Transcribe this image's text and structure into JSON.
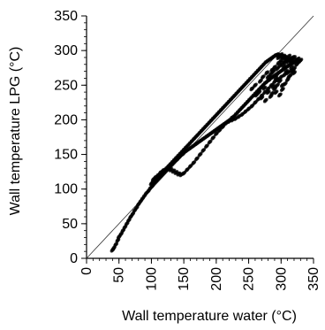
{
  "chart_data": {
    "type": "scatter",
    "xlabel": "Wall temperature water (°C)",
    "ylabel": "Wall temperature LPG (°C)",
    "xlim": [
      0,
      350
    ],
    "ylim": [
      0,
      350
    ],
    "x_ticks": [
      0,
      50,
      100,
      150,
      200,
      250,
      300,
      350
    ],
    "y_ticks": [
      0,
      50,
      100,
      150,
      200,
      250,
      300,
      350
    ],
    "grid": false,
    "reference_line": {
      "from": [
        0,
        0
      ],
      "to": [
        350,
        350
      ]
    },
    "marker_color": "#000000",
    "series": [
      {
        "name": "",
        "points": [
          [
            40,
            12
          ],
          [
            42,
            15
          ],
          [
            45,
            20
          ],
          [
            48,
            26
          ],
          [
            50,
            31
          ],
          [
            53,
            35
          ],
          [
            56,
            40
          ],
          [
            59,
            45
          ],
          [
            62,
            50
          ],
          [
            65,
            55
          ],
          [
            68,
            60
          ],
          [
            71,
            64
          ],
          [
            74,
            69
          ],
          [
            77,
            73
          ],
          [
            80,
            78
          ],
          [
            83,
            82
          ],
          [
            86,
            86
          ],
          [
            89,
            90
          ],
          [
            92,
            94
          ],
          [
            95,
            97
          ],
          [
            98,
            101
          ],
          [
            101,
            104
          ],
          [
            104,
            108
          ],
          [
            107,
            111
          ],
          [
            110,
            114
          ],
          [
            113,
            117
          ],
          [
            116,
            120
          ],
          [
            119,
            123
          ],
          [
            122,
            126
          ],
          [
            125,
            129
          ],
          [
            128,
            132
          ],
          [
            131,
            135
          ],
          [
            134,
            138
          ],
          [
            137,
            141
          ],
          [
            140,
            143
          ],
          [
            143,
            146
          ],
          [
            146,
            149
          ],
          [
            149,
            151
          ],
          [
            152,
            154
          ],
          [
            155,
            156
          ],
          [
            158,
            158
          ],
          [
            161,
            160
          ],
          [
            164,
            162
          ],
          [
            167,
            164
          ],
          [
            170,
            166
          ],
          [
            173,
            168
          ],
          [
            176,
            170
          ],
          [
            179,
            172
          ],
          [
            182,
            174
          ],
          [
            185,
            176
          ],
          [
            188,
            178
          ],
          [
            191,
            180
          ],
          [
            194,
            182
          ],
          [
            197,
            184
          ],
          [
            200,
            186
          ],
          [
            203,
            188
          ],
          [
            206,
            190
          ],
          [
            209,
            192
          ],
          [
            212,
            194
          ],
          [
            215,
            196
          ],
          [
            218,
            198
          ],
          [
            221,
            200
          ],
          [
            224,
            203
          ],
          [
            227,
            205
          ],
          [
            230,
            208
          ],
          [
            233,
            211
          ],
          [
            236,
            214
          ],
          [
            239,
            217
          ],
          [
            242,
            220
          ],
          [
            245,
            223
          ],
          [
            248,
            226
          ],
          [
            251,
            229
          ],
          [
            254,
            232
          ],
          [
            257,
            235
          ],
          [
            260,
            238
          ],
          [
            263,
            241
          ],
          [
            266,
            244
          ],
          [
            269,
            247
          ],
          [
            272,
            250
          ],
          [
            275,
            253
          ],
          [
            278,
            255
          ],
          [
            281,
            258
          ],
          [
            284,
            260
          ],
          [
            287,
            262
          ],
          [
            290,
            264
          ],
          [
            293,
            266
          ],
          [
            296,
            268
          ],
          [
            299,
            270
          ],
          [
            302,
            272
          ],
          [
            305,
            274
          ],
          [
            308,
            276
          ],
          [
            311,
            278
          ],
          [
            314,
            280
          ],
          [
            317,
            282
          ],
          [
            320,
            283
          ],
          [
            323,
            284
          ],
          [
            102,
            110
          ],
          [
            105,
            112
          ],
          [
            108,
            115
          ],
          [
            111,
            118
          ],
          [
            114,
            121
          ],
          [
            117,
            124
          ],
          [
            120,
            127
          ],
          [
            123,
            130
          ],
          [
            126,
            133
          ],
          [
            129,
            136
          ],
          [
            132,
            139
          ],
          [
            135,
            142
          ],
          [
            138,
            145
          ],
          [
            141,
            148
          ],
          [
            144,
            151
          ],
          [
            147,
            154
          ],
          [
            150,
            157
          ],
          [
            153,
            160
          ],
          [
            156,
            163
          ],
          [
            159,
            166
          ],
          [
            162,
            169
          ],
          [
            165,
            172
          ],
          [
            168,
            175
          ],
          [
            171,
            178
          ],
          [
            174,
            181
          ],
          [
            177,
            184
          ],
          [
            180,
            187
          ],
          [
            183,
            190
          ],
          [
            186,
            193
          ],
          [
            189,
            196
          ],
          [
            192,
            199
          ],
          [
            195,
            202
          ],
          [
            198,
            205
          ],
          [
            201,
            208
          ],
          [
            204,
            211
          ],
          [
            207,
            214
          ],
          [
            210,
            217
          ],
          [
            213,
            220
          ],
          [
            216,
            223
          ],
          [
            219,
            226
          ],
          [
            222,
            229
          ],
          [
            225,
            232
          ],
          [
            228,
            235
          ],
          [
            231,
            238
          ],
          [
            234,
            241
          ],
          [
            237,
            244
          ],
          [
            240,
            247
          ],
          [
            243,
            250
          ],
          [
            246,
            253
          ],
          [
            249,
            256
          ],
          [
            252,
            259
          ],
          [
            255,
            262
          ],
          [
            258,
            265
          ],
          [
            261,
            268
          ],
          [
            264,
            271
          ],
          [
            267,
            274
          ],
          [
            270,
            277
          ],
          [
            273,
            280
          ],
          [
            276,
            283
          ],
          [
            279,
            285
          ],
          [
            282,
            287
          ],
          [
            285,
            289
          ],
          [
            288,
            291
          ],
          [
            291,
            293
          ],
          [
            294,
            294
          ],
          [
            297,
            293
          ],
          [
            300,
            292
          ],
          [
            303,
            291
          ],
          [
            306,
            290
          ],
          [
            309,
            288
          ],
          [
            312,
            287
          ],
          [
            315,
            286
          ],
          [
            100,
            108
          ],
          [
            103,
            114
          ],
          [
            106,
            117
          ],
          [
            110,
            120
          ],
          [
            114,
            124
          ],
          [
            118,
            127
          ],
          [
            122,
            128
          ],
          [
            126,
            131
          ],
          [
            130,
            128
          ],
          [
            134,
            126
          ],
          [
            138,
            124
          ],
          [
            142,
            122
          ],
          [
            146,
            121
          ],
          [
            150,
            123
          ],
          [
            155,
            128
          ],
          [
            160,
            133
          ],
          [
            165,
            138
          ],
          [
            170,
            144
          ],
          [
            175,
            150
          ],
          [
            180,
            156
          ],
          [
            185,
            162
          ],
          [
            190,
            168
          ],
          [
            195,
            174
          ],
          [
            200,
            180
          ],
          [
            205,
            185
          ],
          [
            210,
            190
          ],
          [
            215,
            195
          ],
          [
            220,
            198
          ],
          [
            225,
            200
          ],
          [
            230,
            202
          ],
          [
            235,
            205
          ],
          [
            240,
            208
          ],
          [
            245,
            212
          ],
          [
            250,
            216
          ],
          [
            255,
            220
          ],
          [
            260,
            225
          ],
          [
            265,
            230
          ],
          [
            270,
            235
          ],
          [
            275,
            240
          ],
          [
            280,
            245
          ],
          [
            285,
            250
          ],
          [
            290,
            255
          ],
          [
            295,
            258
          ],
          [
            300,
            262
          ],
          [
            305,
            265
          ],
          [
            310,
            268
          ],
          [
            315,
            271
          ],
          [
            320,
            274
          ],
          [
            255,
            245
          ],
          [
            260,
            250
          ],
          [
            262,
            236
          ],
          [
            266,
            240
          ],
          [
            268,
            256
          ],
          [
            270,
            232
          ],
          [
            272,
            262
          ],
          [
            274,
            246
          ],
          [
            276,
            228
          ],
          [
            278,
            268
          ],
          [
            280,
            240
          ],
          [
            282,
            258
          ],
          [
            284,
            234
          ],
          [
            286,
            272
          ],
          [
            288,
            248
          ],
          [
            290,
            276
          ],
          [
            292,
            240
          ],
          [
            294,
            266
          ],
          [
            296,
            282
          ],
          [
            298,
            256
          ],
          [
            300,
            286
          ],
          [
            302,
            250
          ],
          [
            304,
            278
          ],
          [
            306,
            290
          ],
          [
            308,
            270
          ],
          [
            310,
            284
          ],
          [
            312,
            262
          ],
          [
            314,
            288
          ],
          [
            316,
            276
          ],
          [
            318,
            290
          ],
          [
            320,
            268
          ],
          [
            322,
            286
          ],
          [
            324,
            280
          ],
          [
            326,
            288
          ],
          [
            328,
            284
          ],
          [
            330,
            286
          ],
          [
            286,
            238
          ],
          [
            290,
            245
          ],
          [
            294,
            250
          ],
          [
            298,
            236
          ],
          [
            302,
            244
          ],
          [
            306,
            252
          ],
          [
            310,
            258
          ],
          [
            314,
            264
          ],
          [
            318,
            270
          ],
          [
            294,
            274
          ],
          [
            298,
            278
          ],
          [
            302,
            282
          ],
          [
            306,
            284
          ],
          [
            296,
            290
          ],
          [
            300,
            294
          ],
          [
            304,
            292
          ],
          [
            308,
            286
          ],
          [
            312,
            292
          ],
          [
            316,
            284
          ],
          [
            320,
            290
          ],
          [
            280,
            262
          ],
          [
            284,
            266
          ],
          [
            288,
            270
          ],
          [
            292,
            260
          ]
        ]
      }
    ]
  }
}
